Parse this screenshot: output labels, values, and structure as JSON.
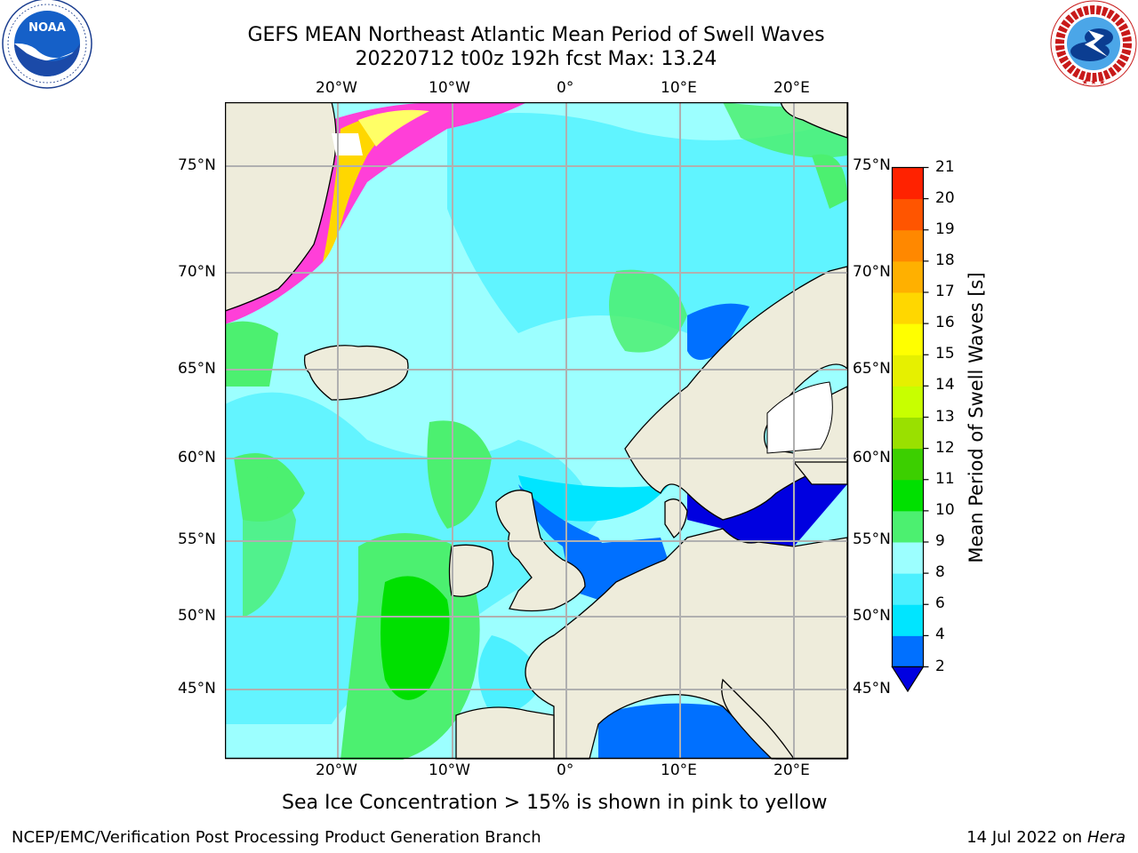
{
  "header": {
    "title_line1": "GEFS MEAN Northeast Atlantic Mean Period of Swell Waves",
    "title_line2": "20220712 t00z 192h fcst   Max: 13.24"
  },
  "logos": {
    "noaa_text": "NOAA",
    "noaa_ring_text": "NATIONAL OCEANIC AND ATMOSPHERIC ADMINISTRATION · U.S. DEPARTMENT OF COMMERCE",
    "nws_ring_text": "NATIONAL WEATHER SERVICE"
  },
  "map": {
    "lon_labels": [
      "20°W",
      "10°W",
      "0°",
      "10°E",
      "20°E"
    ],
    "lat_labels": [
      "75°N",
      "70°N",
      "65°N",
      "60°N",
      "55°N",
      "50°N",
      "45°N"
    ]
  },
  "colorbar": {
    "label": "Mean Period of Swell Waves [s]",
    "ticks": [
      "2",
      "4",
      "6",
      "8",
      "9",
      "10",
      "11",
      "12",
      "13",
      "14",
      "15",
      "16",
      "17",
      "18",
      "19",
      "20",
      "21"
    ],
    "colors": [
      "#0070ff",
      "#00e5ff",
      "#4cf0ff",
      "#9cffff",
      "#4cf070",
      "#00e000",
      "#3ccf00",
      "#9ae000",
      "#c8ff00",
      "#e6f000",
      "#ffff00",
      "#ffd700",
      "#ffb000",
      "#ff8800",
      "#ff5500",
      "#ff2200"
    ],
    "extend_color": "#0000e0"
  },
  "colors": {
    "land": "#eeecdb",
    "ocean_swell_9": "#9cffff",
    "ice": "#ff3fd8"
  },
  "note": "Sea Ice Concentration > 15% is shown in pink to yellow",
  "footer": {
    "left": "NCEP/EMC/Verification Post Processing Product Generation Branch",
    "right_date": "14 Jul 2022 on ",
    "right_host": "Hera"
  }
}
